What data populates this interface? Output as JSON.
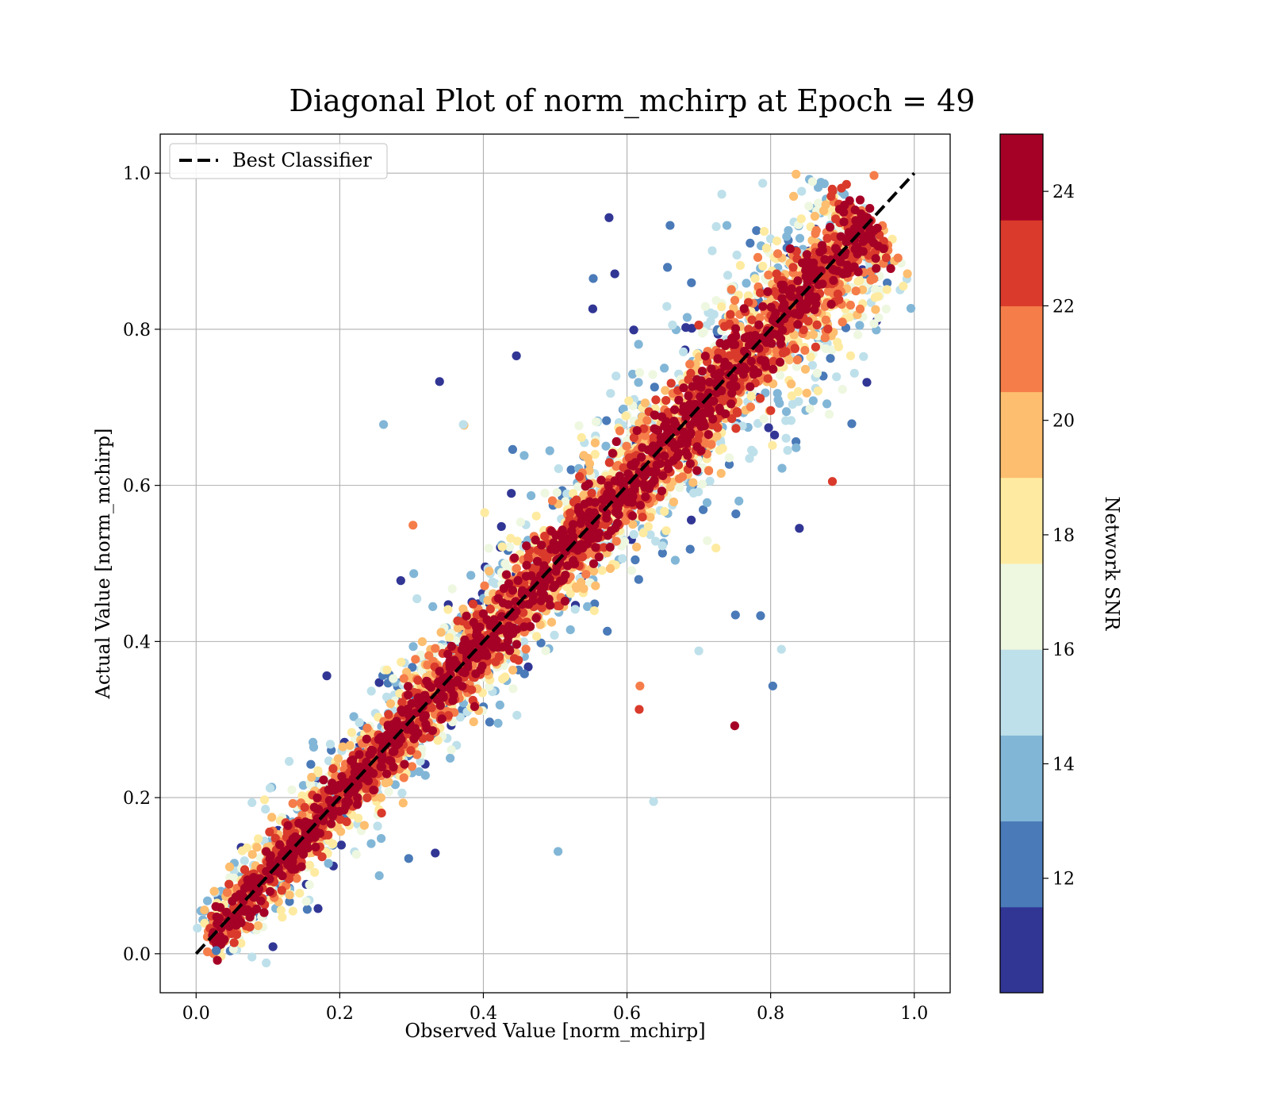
{
  "chart_data": {
    "type": "scatter",
    "title": "Diagonal Plot of norm_mchirp at Epoch = 49",
    "xlabel": "Observed Value [norm_mchirp]",
    "ylabel": "Actual Value [norm_mchirp]",
    "xlim": [
      -0.05,
      1.05
    ],
    "ylim": [
      -0.05,
      1.05
    ],
    "xticks": [
      "0.0",
      "0.2",
      "0.4",
      "0.6",
      "0.8",
      "1.0"
    ],
    "yticks": [
      "0.0",
      "0.2",
      "0.4",
      "0.6",
      "0.8",
      "1.0"
    ],
    "grid": true,
    "legend": {
      "placement": "top-left",
      "entries": [
        {
          "label": "Best Classifier",
          "style": "dashed",
          "color": "#000000"
        }
      ]
    },
    "reference_line": {
      "x": [
        0.0,
        1.0
      ],
      "y": [
        0.0,
        1.0
      ]
    },
    "colorbar": {
      "label": "Network SNR",
      "range": [
        10,
        25
      ],
      "ticks": [
        "12",
        "14",
        "16",
        "18",
        "20",
        "22",
        "24"
      ],
      "bins": [
        {
          "from": 10.0,
          "to": 11.5,
          "color": "#313695"
        },
        {
          "from": 11.5,
          "to": 13.0,
          "color": "#4a7ab8"
        },
        {
          "from": 13.0,
          "to": 14.5,
          "color": "#82b6d7"
        },
        {
          "from": 14.5,
          "to": 16.0,
          "color": "#bee0ea"
        },
        {
          "from": 16.0,
          "to": 17.5,
          "color": "#eef7e0"
        },
        {
          "from": 17.5,
          "to": 19.0,
          "color": "#feeba1"
        },
        {
          "from": 19.0,
          "to": 20.5,
          "color": "#fdbe6f"
        },
        {
          "from": 20.5,
          "to": 22.0,
          "color": "#f57d4a"
        },
        {
          "from": 22.0,
          "to": 23.5,
          "color": "#d93a2b"
        },
        {
          "from": 23.5,
          "to": 25.0,
          "color": "#a50026"
        }
      ]
    },
    "points": [
      {
        "x": 0.575,
        "y": 0.943,
        "snr": 10.5
      },
      {
        "x": 0.339,
        "y": 0.733,
        "snr": 10.5
      },
      {
        "x": 0.261,
        "y": 0.678,
        "snr": 13.5
      },
      {
        "x": 0.446,
        "y": 0.766,
        "snr": 10.5
      },
      {
        "x": 0.373,
        "y": 0.677,
        "snr": 19.5
      },
      {
        "x": 0.302,
        "y": 0.549,
        "snr": 21.5
      },
      {
        "x": 0.886,
        "y": 0.605,
        "snr": 22.5
      },
      {
        "x": 0.84,
        "y": 0.545,
        "snr": 10.5
      },
      {
        "x": 0.75,
        "y": 0.292,
        "snr": 24.2
      },
      {
        "x": 0.803,
        "y": 0.343,
        "snr": 11.5
      },
      {
        "x": 0.637,
        "y": 0.195,
        "snr": 15.0
      },
      {
        "x": 0.504,
        "y": 0.131,
        "snr": 13.5
      },
      {
        "x": 0.333,
        "y": 0.129,
        "snr": 10.5
      },
      {
        "x": 0.255,
        "y": 0.1,
        "snr": 13.5
      },
      {
        "x": 0.296,
        "y": 0.122,
        "snr": 11.5
      },
      {
        "x": 0.617,
        "y": 0.313,
        "snr": 22.5
      },
      {
        "x": 0.618,
        "y": 0.343,
        "snr": 21.5
      },
      {
        "x": 0.751,
        "y": 0.434,
        "snr": 11.5
      },
      {
        "x": 0.786,
        "y": 0.433,
        "snr": 11.5
      },
      {
        "x": 0.934,
        "y": 0.732,
        "snr": 10.5
      },
      {
        "x": 0.913,
        "y": 0.679,
        "snr": 12.0
      },
      {
        "x": 0.66,
        "y": 0.933,
        "snr": 12.0
      },
      {
        "x": 0.732,
        "y": 0.973,
        "snr": 15.0
      },
      {
        "x": 0.789,
        "y": 0.987,
        "snr": 15.0
      },
      {
        "x": 0.182,
        "y": 0.356,
        "snr": 10.5
      },
      {
        "x": 0.285,
        "y": 0.478,
        "snr": 10.5
      },
      {
        "x": 0.372,
        "y": 0.678,
        "snr": 15.0
      },
      {
        "x": 0.815,
        "y": 0.39,
        "snr": 14.5
      },
      {
        "x": 0.7,
        "y": 0.388,
        "snr": 15.5
      },
      {
        "x": 0.107,
        "y": 0.009,
        "snr": 11.0
      },
      {
        "x": 0.028,
        "y": 0.004,
        "snr": 12.0
      },
      {
        "x": 0.944,
        "y": 0.997,
        "snr": 21.0
      },
      {
        "x": 0.947,
        "y": 0.878,
        "snr": 24.0
      },
      {
        "x": 0.553,
        "y": 0.865,
        "snr": 12.0
      },
      {
        "x": 0.583,
        "y": 0.871,
        "snr": 11.0
      }
    ],
    "cloud_note_fields": {
      "trend": [
        0.0,
        1.0
      ]
    }
  }
}
